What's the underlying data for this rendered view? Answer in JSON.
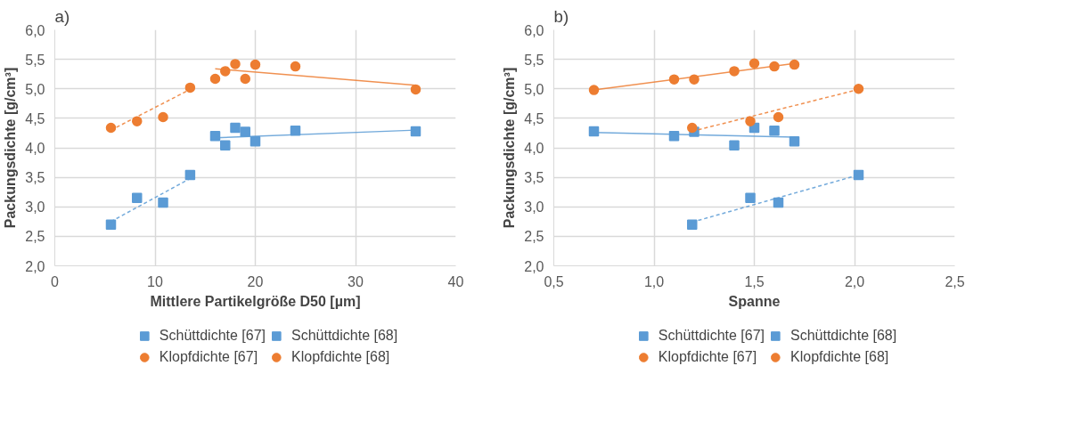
{
  "chart_data": [
    {
      "type": "scatter",
      "title": "a)",
      "xlabel": "Mittlere Partikelgröße D50 [µm]",
      "ylabel": "Packungsdichte [g/cm³]",
      "xlim": [
        0,
        40
      ],
      "xticks": [
        0,
        10,
        20,
        30,
        40
      ],
      "ylim": [
        2.0,
        6.0
      ],
      "yticks": [
        {
          "value": 2.0,
          "label": "2,0"
        },
        {
          "value": 2.5,
          "label": "2,5"
        },
        {
          "value": 3.0,
          "label": "3,0"
        },
        {
          "value": 3.5,
          "label": "3,5"
        },
        {
          "value": 4.0,
          "label": "4,0"
        },
        {
          "value": 4.5,
          "label": "4,5"
        },
        {
          "value": 5.0,
          "label": "5,0"
        },
        {
          "value": 5.5,
          "label": "5,5"
        },
        {
          "value": 6.0,
          "label": "6,0"
        }
      ],
      "grid": true,
      "legend": "bottom",
      "series": [
        {
          "name": "Schüttdichte [67]",
          "color": "#5b9bd5",
          "marker": "square",
          "x": [
            16,
            17,
            18,
            19,
            20,
            24,
            36
          ],
          "values": [
            4.2,
            4.04,
            4.34,
            4.27,
            4.11,
            4.29,
            4.28
          ]
        },
        {
          "name": "Schüttdichte [68]",
          "color": "#5b9bd5",
          "marker": "square",
          "x": [
            5.6,
            8.2,
            10.8,
            13.5
          ],
          "values": [
            2.7,
            3.15,
            3.07,
            3.54
          ]
        },
        {
          "name": "Klopfdichte [67]",
          "color": "#ed7d31",
          "marker": "circle",
          "x": [
            16,
            17,
            18,
            19,
            20,
            24,
            36
          ],
          "values": [
            5.17,
            5.3,
            5.42,
            5.17,
            5.41,
            5.38,
            4.99
          ]
        },
        {
          "name": "Klopfdichte [68]",
          "color": "#ed7d31",
          "marker": "circle",
          "x": [
            5.6,
            8.2,
            10.8,
            13.5
          ],
          "values": [
            4.34,
            4.45,
            4.52,
            5.02
          ]
        },
        {
          "type": "line",
          "color": "#5b9bd5",
          "line_style": "solid",
          "x": [
            16,
            36
          ],
          "values": [
            4.17,
            4.3
          ]
        },
        {
          "type": "line",
          "color": "#5b9bd5",
          "line_style": "dashed",
          "x": [
            5.6,
            13.5
          ],
          "values": [
            2.75,
            3.48
          ]
        },
        {
          "type": "line",
          "color": "#ed7d31",
          "line_style": "solid",
          "x": [
            16,
            36
          ],
          "values": [
            5.34,
            5.06
          ]
        },
        {
          "type": "line",
          "color": "#ed7d31",
          "line_style": "dashed",
          "x": [
            5.6,
            13.5
          ],
          "values": [
            4.3,
            4.99
          ]
        }
      ]
    },
    {
      "type": "scatter",
      "title": "b)",
      "xlabel": "Spanne",
      "ylabel": "Packungsdichte [g/cm³]",
      "xlim": [
        0.5,
        2.5
      ],
      "xticks": [
        {
          "value": 0.5,
          "label": "0,5"
        },
        {
          "value": 1.0,
          "label": "1,0"
        },
        {
          "value": 1.5,
          "label": "1,5"
        },
        {
          "value": 2.0,
          "label": "2,0"
        },
        {
          "value": 2.5,
          "label": "2,5"
        }
      ],
      "ylim": [
        2.0,
        6.0
      ],
      "yticks": [
        {
          "value": 2.0,
          "label": "2,0"
        },
        {
          "value": 2.5,
          "label": "2,5"
        },
        {
          "value": 3.0,
          "label": "3,0"
        },
        {
          "value": 3.5,
          "label": "3,5"
        },
        {
          "value": 4.0,
          "label": "4,0"
        },
        {
          "value": 4.5,
          "label": "4,5"
        },
        {
          "value": 5.0,
          "label": "5,0"
        },
        {
          "value": 5.5,
          "label": "5,5"
        },
        {
          "value": 6.0,
          "label": "6,0"
        }
      ],
      "grid": true,
      "legend": "bottom",
      "series": [
        {
          "name": "Schüttdichte [67]",
          "color": "#5b9bd5",
          "marker": "square",
          "x": [
            0.7,
            1.1,
            1.2,
            1.4,
            1.5,
            1.6,
            1.7
          ],
          "values": [
            4.28,
            4.2,
            4.27,
            4.04,
            4.34,
            4.29,
            4.11
          ]
        },
        {
          "name": "Schüttdichte [68]",
          "color": "#5b9bd5",
          "marker": "square",
          "x": [
            1.19,
            1.48,
            1.62,
            2.02
          ],
          "values": [
            2.7,
            3.15,
            3.07,
            3.54
          ]
        },
        {
          "name": "Klopfdichte [67]",
          "color": "#ed7d31",
          "marker": "circle",
          "x": [
            0.7,
            1.1,
            1.2,
            1.4,
            1.5,
            1.6,
            1.7
          ],
          "values": [
            4.98,
            5.16,
            5.16,
            5.3,
            5.43,
            5.38,
            5.41
          ]
        },
        {
          "name": "Klopfdichte [68]",
          "color": "#ed7d31",
          "marker": "circle",
          "x": [
            1.19,
            1.48,
            1.62,
            2.02
          ],
          "values": [
            4.34,
            4.45,
            4.52,
            5.0
          ]
        },
        {
          "type": "line",
          "color": "#5b9bd5",
          "line_style": "solid",
          "x": [
            0.7,
            1.7
          ],
          "values": [
            4.26,
            4.18
          ]
        },
        {
          "type": "line",
          "color": "#5b9bd5",
          "line_style": "dashed",
          "x": [
            1.19,
            2.02
          ],
          "values": [
            2.74,
            3.54
          ]
        },
        {
          "type": "line",
          "color": "#ed7d31",
          "line_style": "solid",
          "x": [
            0.7,
            1.7
          ],
          "values": [
            4.98,
            5.43
          ]
        },
        {
          "type": "line",
          "color": "#ed7d31",
          "line_style": "dashed",
          "x": [
            1.19,
            2.02
          ],
          "values": [
            4.28,
            4.99
          ]
        }
      ]
    }
  ]
}
